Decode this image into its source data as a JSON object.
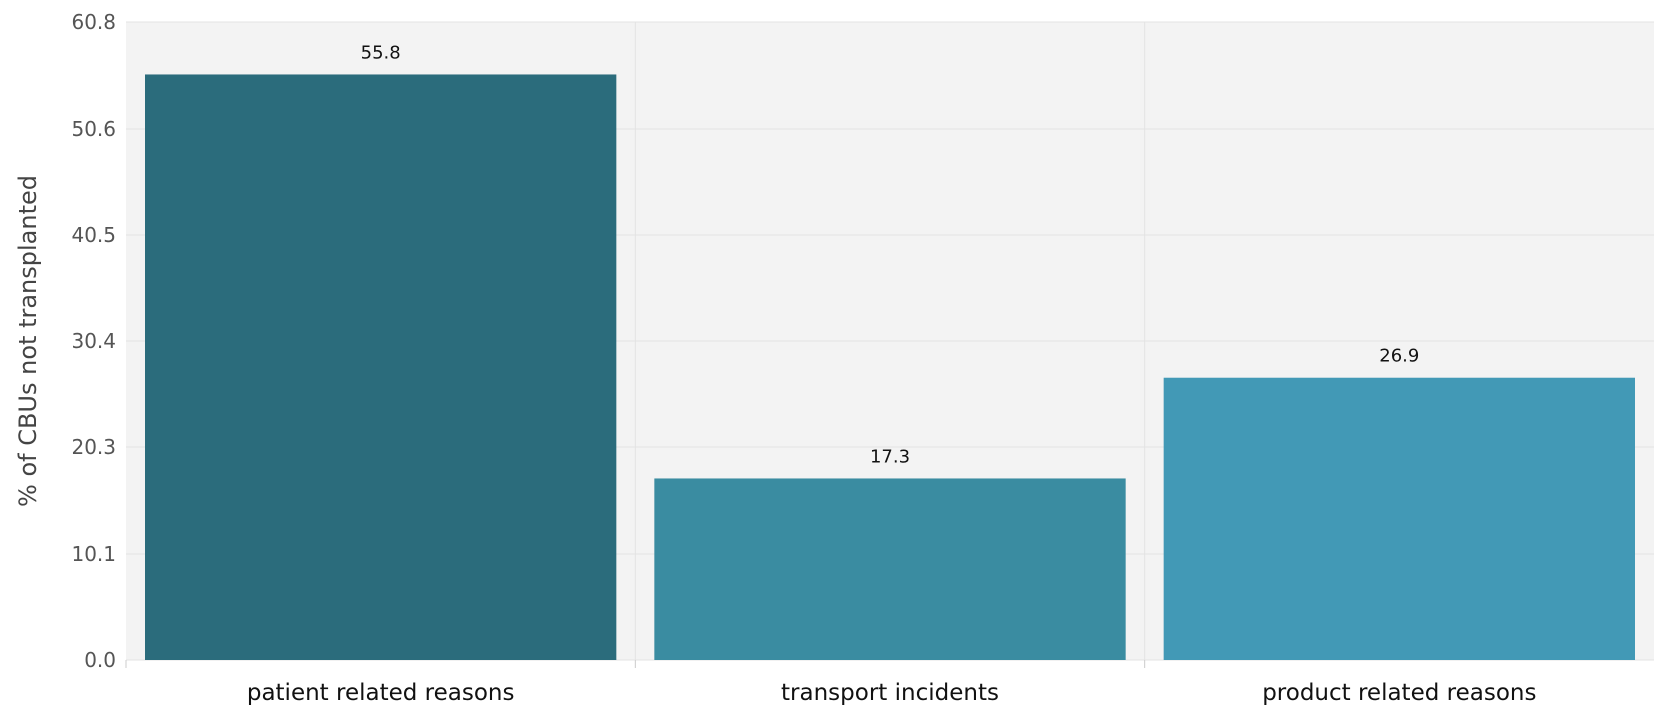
{
  "chart_data": {
    "type": "bar",
    "title": "",
    "xlabel": "",
    "ylabel": "% of CBUs not transplanted",
    "ylim": [
      0,
      60.8
    ],
    "yticks": [
      "0.0",
      "10.1",
      "20.3",
      "30.4",
      "40.5",
      "50.6",
      "60.8"
    ],
    "grid": true,
    "categories": [
      "patient related reasons",
      "transport incidents",
      "product related reasons"
    ],
    "values": [
      55.8,
      17.3,
      26.9
    ],
    "value_labels": [
      "55.8",
      "17.3",
      "26.9"
    ],
    "colors": [
      "#2b6c7c",
      "#3a8ca1",
      "#4299b6"
    ],
    "plot_background": "#f3f3f3",
    "grid_color": "#e3e3e3"
  }
}
